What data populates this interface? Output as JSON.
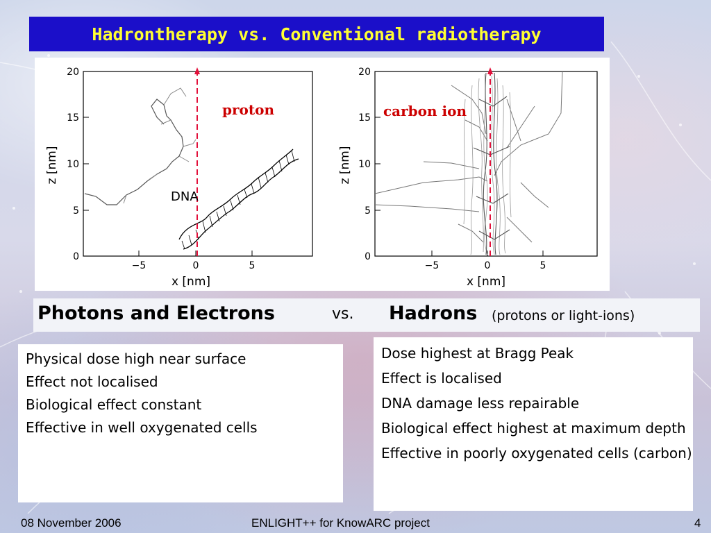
{
  "slide": {
    "title": "Hadrontherapy vs. Conventional radiotherapy",
    "footer_date": "08 November 2006",
    "footer_project": "ENLIGHT++ for KnowARC project",
    "page_number": "4"
  },
  "figure": {
    "left_plot": {
      "annotation": "proton",
      "dna_label": "DNA",
      "xlabel": "x  [nm]",
      "ylabel": "z  [nm]",
      "x_ticks": [
        "−5",
        "0",
        "5"
      ],
      "y_ticks": [
        "0",
        "5",
        "10",
        "15",
        "20"
      ],
      "annotation_color": "#cc0000",
      "track_color": "#e2103a"
    },
    "right_plot": {
      "annotation": "carbon ion",
      "xlabel": "x  [nm]",
      "ylabel": "z  [nm]",
      "x_ticks": [
        "−5",
        "0",
        "5"
      ],
      "y_ticks": [
        "0",
        "5",
        "10",
        "15",
        "20"
      ],
      "annotation_color": "#cc0000",
      "track_color": "#e2103a"
    }
  },
  "comparison": {
    "left_heading": "Photons and Electrons",
    "vs_label": "vs.",
    "right_heading": "Hadrons",
    "right_heading_sub": "(protons or light-ions)",
    "left_items": [
      "Physical dose high near surface",
      "Effect not localised",
      "Biological effect constant",
      "Effective in well oxygenated cells"
    ],
    "right_items": [
      "Dose highest at Bragg Peak",
      "Effect is localised",
      "DNA damage less repairable",
      "Biological effect highest at maximum depth",
      "Effective in poorly oxygenated cells (carbon)"
    ]
  },
  "colors": {
    "title_bar": "#1b0fc9",
    "title_text": "#ffff33"
  }
}
